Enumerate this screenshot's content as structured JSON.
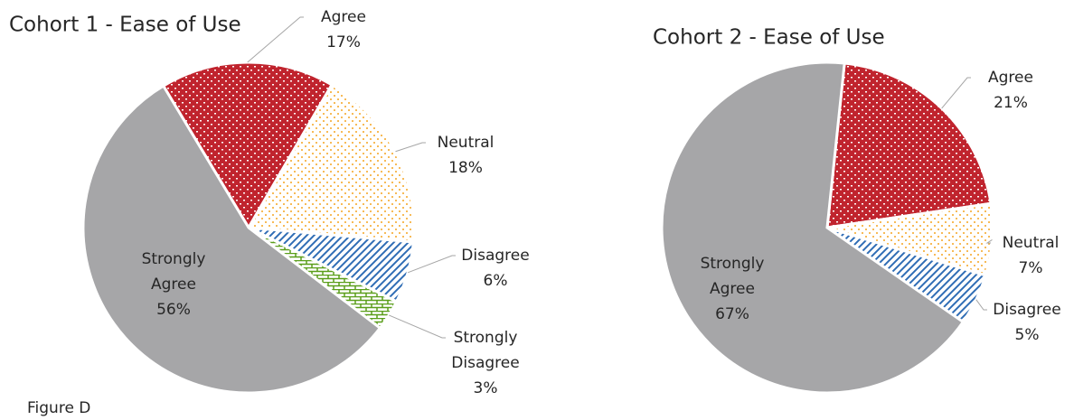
{
  "caption": "Figure D",
  "chart_data": [
    {
      "type": "pie",
      "title": "Cohort 1 - Ease of Use",
      "categories": [
        "Agree",
        "Neutral",
        "Disagree",
        "Strongly Disagree",
        "Strongly Agree"
      ],
      "values": [
        17,
        18,
        6,
        3,
        56
      ],
      "value_labels": [
        "17%",
        "18%",
        "6%",
        "3%",
        "56%"
      ],
      "colors": [
        "#c0242e",
        "#f5a623",
        "#2f6db5",
        "#5a9e1a",
        "#a6a6a8"
      ]
    },
    {
      "type": "pie",
      "title": "Cohort 2 - Ease of Use",
      "categories": [
        "Agree",
        "Neutral",
        "Disagree",
        "Strongly Agree"
      ],
      "values": [
        21,
        7,
        5,
        67
      ],
      "value_labels": [
        "21%",
        "7%",
        "5%",
        "67%"
      ],
      "colors": [
        "#c0242e",
        "#f5a623",
        "#2f6db5",
        "#a6a6a8"
      ]
    }
  ]
}
